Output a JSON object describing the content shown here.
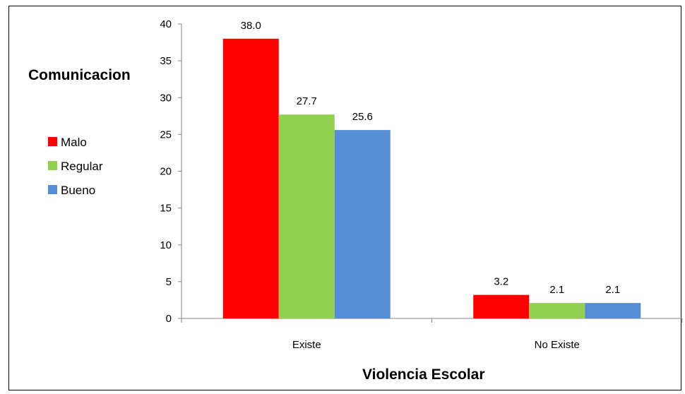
{
  "chart_data": {
    "type": "bar",
    "title": "",
    "xlabel": "Violencia Escolar",
    "ylabel": "Comunicacion",
    "categories": [
      "Existe",
      "No Existe"
    ],
    "series": [
      {
        "name": "Malo",
        "color": "#ff0000",
        "values": [
          38.0,
          3.2
        ],
        "labels": [
          "38.0",
          "3.2"
        ]
      },
      {
        "name": "Regular",
        "color": "#92d050",
        "values": [
          27.7,
          2.1
        ],
        "labels": [
          "27.7",
          "2.1"
        ]
      },
      {
        "name": "Bueno",
        "color": "#558ed5",
        "values": [
          25.6,
          2.1
        ],
        "labels": [
          "25.6",
          "2.1"
        ]
      }
    ],
    "ylim": [
      0,
      40
    ],
    "yticks": [
      0,
      5,
      10,
      15,
      20,
      25,
      30,
      35,
      40
    ],
    "grid": false,
    "legend_position": "left"
  }
}
